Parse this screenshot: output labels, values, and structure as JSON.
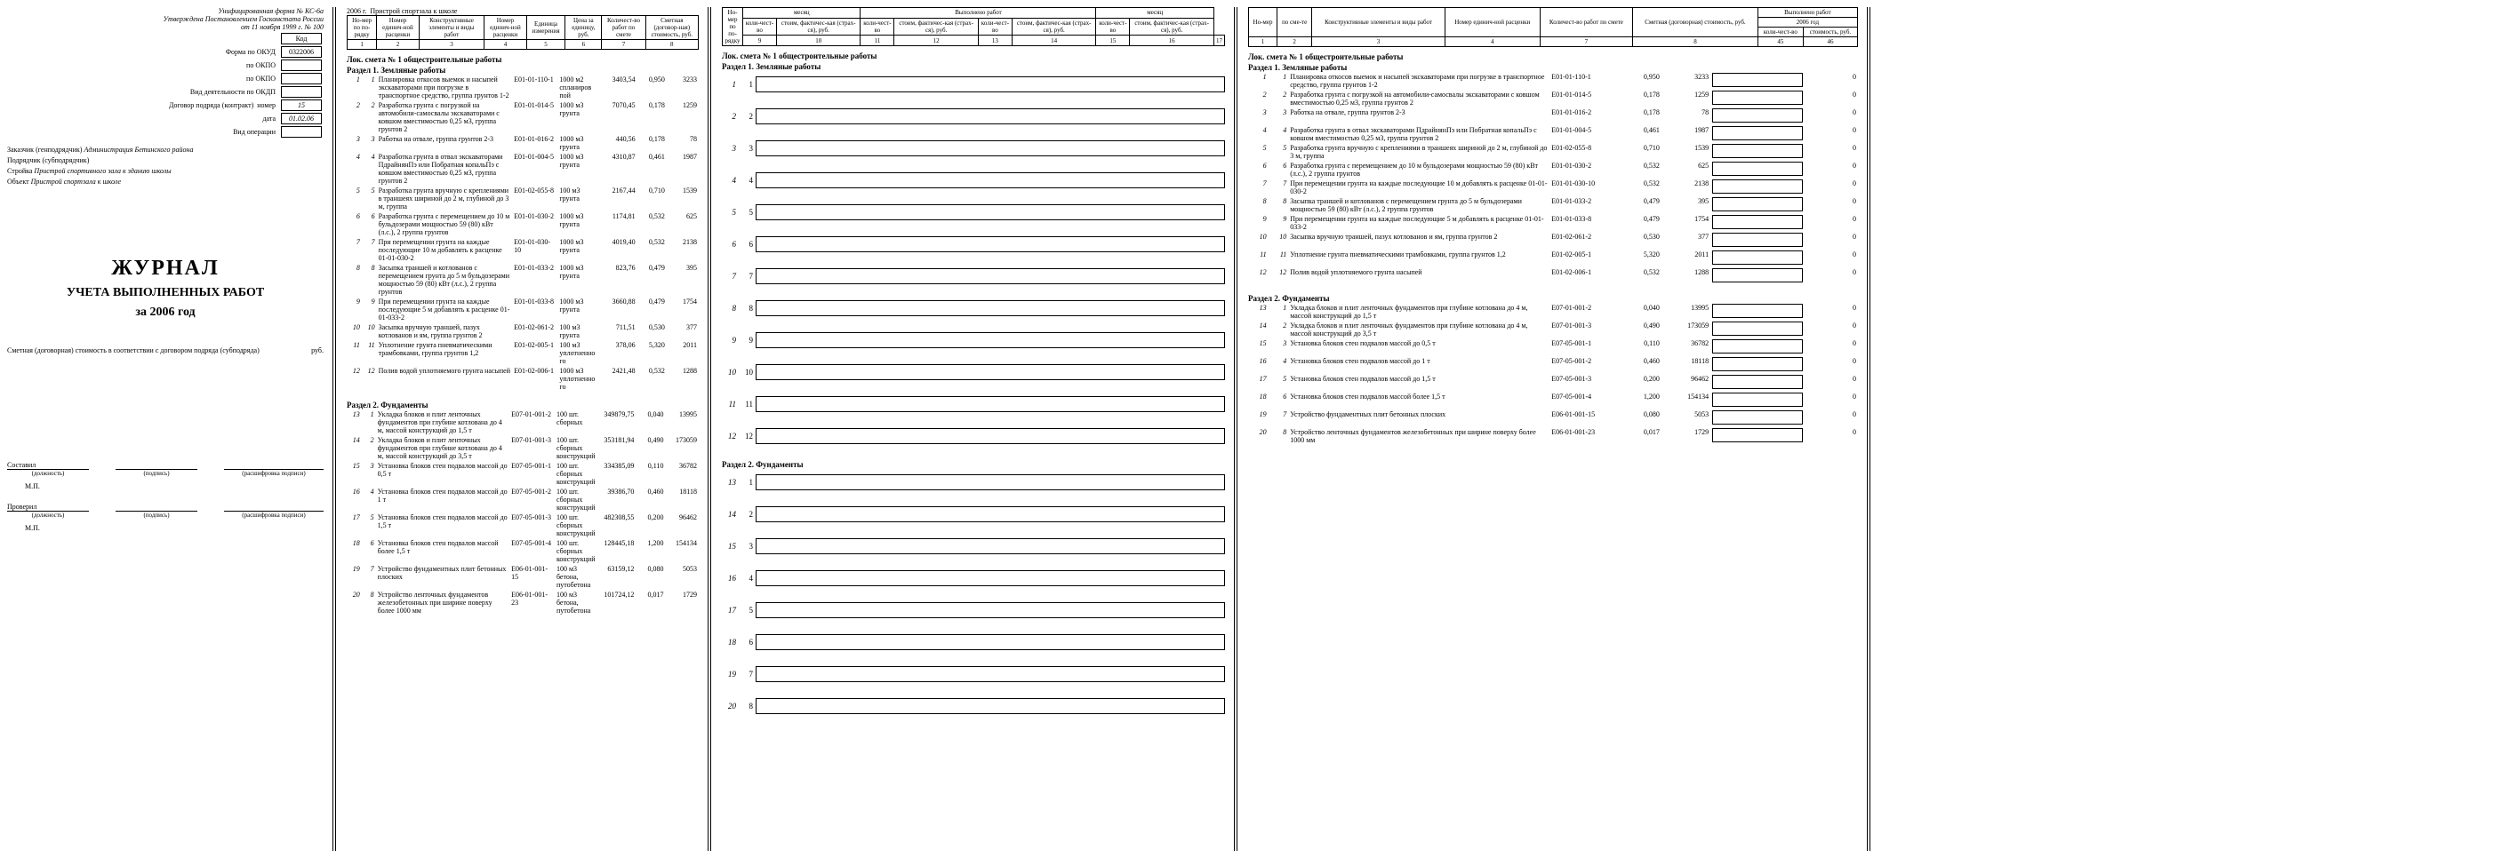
{
  "page1": {
    "form_note": "Унифицированная форма № КС-6а",
    "approved": "Утверждена Постановлением Госкомстата России",
    "approved2": "от 11 ноября 1999 г. № 100",
    "codes_header": "Код",
    "okud_label": "Форма по ОКУД",
    "okud": "0322006",
    "okpo_label": "по ОКПО",
    "okdp_label": "Вид деятельности по ОКДП",
    "contract_label": "Договор подряда (контракт)",
    "contract_num_label": "номер",
    "contract_num": "15",
    "contract_date_label": "дата",
    "contract_date": "01.02.06",
    "op_label": "Вид операции",
    "customer_label": "Заказчик (генподрядчик)",
    "customer": "Администрация Бетинского района",
    "contractor_label": "Подрядчик (субподрядчик)",
    "contractor": "",
    "project_label": "Стройка",
    "project": "Пристрой спортивного зала к зданию школы",
    "object_label": "Объект",
    "object": "Пристрой спортзала к школе",
    "journal": "ЖУРНАЛ",
    "journal_sub": "УЧЕТА ВЫПОЛНЕННЫХ РАБОТ",
    "journal_year": "за    2006   год",
    "estimate_line": "Сметная (договорная) стоимость в соответствии с договором подряда (субподряда)",
    "rub": "руб.",
    "compiled": "Составил",
    "checked": "Проверил",
    "sig_post": "(должность)",
    "sig_sign": "(подпись)",
    "sig_name": "(расшифровка подписи)",
    "mp": "М.П."
  },
  "page2": {
    "year_label": "2006 г.",
    "title1": "Пристрой спортзала к школе",
    "h": [
      "Но-мер по по-рядку",
      "Номер единич-ной расценки",
      "Конструктивные элементы и виды работ",
      "Номер единич-ной расценки",
      "Единица измерения",
      "Цена за единицу, руб.",
      "Количест-во работ по смете",
      "Сметная (договор-ная) стоимость, руб."
    ],
    "hnum": [
      "1",
      "2",
      "3",
      "4",
      "5",
      "6",
      "7",
      "8"
    ],
    "sect": "Лок. смета №  1   общестроительные работы",
    "sub1": "Раздел 1. Земляные работы",
    "rows1": [
      {
        "n": "1",
        "i": "1",
        "d": "Планировка откосов выемок и насыпей экскаваторами при погрузке в транспортное средство, группа грунтов 1-2",
        "code": "Е01-01-110-1",
        "u": "1000 м2 спланиров пой",
        "p": "3403,54",
        "q": "0,950",
        "c": "3233"
      },
      {
        "n": "2",
        "i": "2",
        "d": "Разработка грунта с погрузкой на автомобили-самосвалы экскаваторами с ковшом вместимостью 0,25 м3, группа грунтов 2",
        "code": "Е01-01-014-5",
        "u": "1000 м3 грунта",
        "p": "7070,45",
        "q": "0,178",
        "c": "1259"
      },
      {
        "n": "3",
        "i": "3",
        "d": "Работка на отвале, группа грунтов 2-3",
        "code": "Е01-01-016-2",
        "u": "1000 м3 грунта",
        "p": "440,56",
        "q": "0,178",
        "c": "78"
      },
      {
        "n": "4",
        "i": "4",
        "d": "Разработка грунта в отвал экскаваторами ПдрайнянПэ или Побратная копальПэ с ковшом вместимостью 0,25 м3, группа грунтов 2",
        "code": "Е01-01-004-5",
        "u": "1000 м3 грунта",
        "p": "4310,87",
        "q": "0,461",
        "c": "1987"
      },
      {
        "n": "5",
        "i": "5",
        "d": "Разработка грунта вручную с креплениями в траншеях шириной до 2 м, глубиной до 3 м, группа",
        "code": "Е01-02-055-8",
        "u": "100 м3 грунта",
        "p": "2167,44",
        "q": "0,710",
        "c": "1539"
      },
      {
        "n": "6",
        "i": "6",
        "d": "Разработка грунта с перемещением до 10 м бульдозерами мощностью 59 (80) кВт (л.с.), 2 группа грунтов",
        "code": "Е01-01-030-2",
        "u": "1000 м3 грунта",
        "p": "1174,81",
        "q": "0,532",
        "c": "625"
      },
      {
        "n": "7",
        "i": "7",
        "d": "При перемещении грунта на каждые последующие 10 м добавлять к расценке 01-01-030-2",
        "code": "Е01-01-030-10",
        "u": "1000 м3 грунта",
        "p": "4019,40",
        "q": "0,532",
        "c": "2138"
      },
      {
        "n": "8",
        "i": "8",
        "d": "Засыпка траншей и котлованов с перемещением грунта до 5 м бульдозерами мощностью 59 (80) кВт (л.с.), 2 группа грунтов",
        "code": "Е01-01-033-2",
        "u": "1000 м3 грунта",
        "p": "823,76",
        "q": "0,479",
        "c": "395"
      },
      {
        "n": "9",
        "i": "9",
        "d": "При перемещении грунта на каждые последующие 5 м добавлять к расценке 01-01-033-2",
        "code": "Е01-01-033-8",
        "u": "1000 м3 грунта",
        "p": "3660,88",
        "q": "0,479",
        "c": "1754"
      },
      {
        "n": "10",
        "i": "10",
        "d": "Засыпка вручную траншей, пазух котлованов и ям, группа грунтов 2",
        "code": "Е01-02-061-2",
        "u": "100 м3 грунта",
        "p": "711,51",
        "q": "0,530",
        "c": "377"
      },
      {
        "n": "11",
        "i": "11",
        "d": "Уплотнение грунта пневматическими трамбовками, группа грунтов 1,2",
        "code": "Е01-02-005-1",
        "u": "100 м3 уплотненно го",
        "p": "378,06",
        "q": "5,320",
        "c": "2011"
      },
      {
        "n": "12",
        "i": "12",
        "d": "Полив водой уплотняемого грунта насыпей",
        "code": "Е01-02-006-1",
        "u": "1000 м3 уплотненно го",
        "p": "2421,48",
        "q": "0,532",
        "c": "1288"
      }
    ],
    "sub2": "Раздел 2. Фундаменты",
    "rows2": [
      {
        "n": "13",
        "i": "1",
        "d": "Укладка блоков и плит ленточных фундаментов при глубине котлована до 4 м, массой конструкций до 1,5 т",
        "code": "Е07-01-001-2",
        "u": "100 шт. сборных",
        "p": "349879,75",
        "q": "0,040",
        "c": "13995"
      },
      {
        "n": "14",
        "i": "2",
        "d": "Укладка блоков и плит ленточных фундаментов при глубине котлована до 4 м, массой конструкций до 3,5 т",
        "code": "Е07-01-001-3",
        "u": "100 шт. сборных конструкций",
        "p": "353181,94",
        "q": "0,490",
        "c": "173059"
      },
      {
        "n": "15",
        "i": "3",
        "d": "Установка блоков стен подвалов массой до 0,5 т",
        "code": "Е07-05-001-1",
        "u": "100 шт. сборных конструкций",
        "p": "334385,09",
        "q": "0,110",
        "c": "36782"
      },
      {
        "n": "16",
        "i": "4",
        "d": "Установка блоков стен подвалов массой до 1 т",
        "code": "Е07-05-001-2",
        "u": "100 шт. сборных конструкций",
        "p": "39386,70",
        "q": "0,460",
        "c": "18118"
      },
      {
        "n": "17",
        "i": "5",
        "d": "Установка блоков стен подвалов массой до 1,5 т",
        "code": "Е07-05-001-3",
        "u": "100 шт. сборных конструкций",
        "p": "482308,55",
        "q": "0,200",
        "c": "96462"
      },
      {
        "n": "18",
        "i": "6",
        "d": "Установка блоков стен подвалов массой более 1,5 т",
        "code": "Е07-05-001-4",
        "u": "100 шт. сборных конструкций",
        "p": "128445,18",
        "q": "1,200",
        "c": "154134"
      },
      {
        "n": "19",
        "i": "7",
        "d": "Устройство фундаментных плит бетонных плоских",
        "code": "Е06-01-001-15",
        "u": "100 м3 бетона, путобетона",
        "p": "63159,12",
        "q": "0,080",
        "c": "5053"
      },
      {
        "n": "20",
        "i": "8",
        "d": "Устройство ленточных фундаментов железобетонных при ширине поверху более 1000 мм",
        "code": "Е06-01-001-23",
        "u": "100 м3 бетона, путобетона",
        "p": "101724,12",
        "q": "0,017",
        "c": "1729"
      }
    ]
  },
  "page3": {
    "h_top": [
      "месяц",
      "Выполнено работ",
      "месяц"
    ],
    "h_sub": [
      "коли-чест-во",
      "стоим, фактичес-кая (страх-ся), руб.",
      "коли-чест-во",
      "стоим, фактичес-кая (страх-ся), руб.",
      "коли-чест-во",
      "стоим, фактичес-кая (страх-ся), руб.",
      "коли-чест-во",
      "стоим, фактичес-кая (страх-ся), руб."
    ],
    "hnum": [
      "9",
      "10",
      "11",
      "12",
      "13",
      "14",
      "15",
      "16",
      "17",
      "18"
    ],
    "sect": "Лок. смета №  1   общестроительные работы",
    "sub1": "Раздел 1. Земляные работы",
    "sub2": "Раздел 2. Фундаменты",
    "nums1": [
      "1",
      "2",
      "3",
      "4",
      "5",
      "6",
      "7",
      "8",
      "9",
      "10",
      "11",
      "12"
    ],
    "nums2": [
      "1",
      "2",
      "3",
      "4",
      "5",
      "6",
      "7",
      "8"
    ]
  },
  "page4": {
    "h_top": "Выполнено работ",
    "h_year": "2006 год",
    "h_cols": [
      "Но-мер",
      "по сме-те",
      "Конструктивные элементы и виды работ",
      "Номер единич-ной расценки",
      "Количест-во работ по смете",
      "Сметная (договорная) стоимость, руб.",
      "коли-чест-во",
      "стоимость, руб."
    ],
    "hnum": [
      "1",
      "2",
      "3",
      "4",
      "7",
      "8",
      "45",
      "46"
    ],
    "sect": "Лок. смета №  1   общестроительные работы",
    "sub1": "Раздел 1. Земляные работы",
    "rows1": [
      {
        "n": "1",
        "i": "1",
        "d": "Планировка откосов выемок и насыпей экскаваторами при погрузке в транспортное средство, группа грунтов 1-2",
        "code": "Е01-01-110-1",
        "q": "0,950",
        "c": "3233"
      },
      {
        "n": "2",
        "i": "2",
        "d": "Разработка грунта с погрузкой на автомобили-самосвалы экскаваторами с ковшом вместимостью 0,25 м3, группа грунтов 2",
        "code": "Е01-01-014-5",
        "q": "0,178",
        "c": "1259"
      },
      {
        "n": "3",
        "i": "3",
        "d": "Работка на отвале, группа грунтов 2-3",
        "code": "Е01-01-016-2",
        "q": "0,178",
        "c": "78"
      },
      {
        "n": "4",
        "i": "4",
        "d": "Разработка грунта в отвал экскаваторами ПдрайнянПэ или Побратная копальПэ с ковшом вместимостью 0,25 м3, группа грунтов 2",
        "code": "Е01-01-004-5",
        "q": "0,461",
        "c": "1987"
      },
      {
        "n": "5",
        "i": "5",
        "d": "Разработка грунта вручную с креплениями в траншеях шириной до 2 м, глубиной до 3 м, группа",
        "code": "Е01-02-055-8",
        "q": "0,710",
        "c": "1539"
      },
      {
        "n": "6",
        "i": "6",
        "d": "Разработка грунта с перемещением до 10 м бульдозерами мощностью 59 (80) кВт (л.с.), 2 группа грунтов",
        "code": "Е01-01-030-2",
        "q": "0,532",
        "c": "625"
      },
      {
        "n": "7",
        "i": "7",
        "d": "При перемещении грунта на каждые последующие 10 м добавлять к расценке 01-01-030-2",
        "code": "Е01-01-030-10",
        "q": "0,532",
        "c": "2138"
      },
      {
        "n": "8",
        "i": "8",
        "d": "Засыпка траншей и котлованов с перемещением грунта до 5 м бульдозерами мощностью 59 (80) кВт (л.с.), 2 группа грунтов",
        "code": "Е01-01-033-2",
        "q": "0,479",
        "c": "395"
      },
      {
        "n": "9",
        "i": "9",
        "d": "При перемещении грунта на каждые последующие 5 м добавлять к расценке 01-01-033-2",
        "code": "Е01-01-033-8",
        "q": "0,479",
        "c": "1754"
      },
      {
        "n": "10",
        "i": "10",
        "d": "Засыпка вручную траншей, пазух котлованов и ям, группа грунтов 2",
        "code": "Е01-02-061-2",
        "q": "0,530",
        "c": "377"
      },
      {
        "n": "11",
        "i": "11",
        "d": "Уплотнение грунта пневматическими трамбовками, группа грунтов 1,2",
        "code": "Е01-02-005-1",
        "q": "5,320",
        "c": "2011"
      },
      {
        "n": "12",
        "i": "12",
        "d": "Полив водой уплотняемого грунта насыпей",
        "code": "Е01-02-006-1",
        "q": "0,532",
        "c": "1288"
      }
    ],
    "sub2": "Раздел 2. Фундаменты",
    "rows2": [
      {
        "n": "13",
        "i": "1",
        "d": "Укладка блоков и плит ленточных фундаментов при глубине котлована до 4 м, массой конструкций до 1,5 т",
        "code": "Е07-01-001-2",
        "q": "0,040",
        "c": "13995"
      },
      {
        "n": "14",
        "i": "2",
        "d": "Укладка блоков и плит ленточных фундаментов при глубине котлована до 4 м, массой конструкций до 3,5 т",
        "code": "Е07-01-001-3",
        "q": "0,490",
        "c": "173059"
      },
      {
        "n": "15",
        "i": "3",
        "d": "Установка блоков стен подвалов массой до 0,5 т",
        "code": "Е07-05-001-1",
        "q": "0,110",
        "c": "36782"
      },
      {
        "n": "16",
        "i": "4",
        "d": "Установка блоков стен подвалов массой до 1 т",
        "code": "Е07-05-001-2",
        "q": "0,460",
        "c": "18118"
      },
      {
        "n": "17",
        "i": "5",
        "d": "Установка блоков стен подвалов массой до 1,5 т",
        "code": "Е07-05-001-3",
        "q": "0,200",
        "c": "96462"
      },
      {
        "n": "18",
        "i": "6",
        "d": "Установка блоков стен подвалов массой более 1,5 т",
        "code": "Е07-05-001-4",
        "q": "1,200",
        "c": "154134"
      },
      {
        "n": "19",
        "i": "7",
        "d": "Устройство фундаментных плит бетонных плоских",
        "code": "Е06-01-001-15",
        "q": "0,080",
        "c": "5053"
      },
      {
        "n": "20",
        "i": "8",
        "d": "Устройство ленточных фундаментов железобетонных при ширине поверху более 1000 мм",
        "code": "Е06-01-001-23",
        "q": "0,017",
        "c": "1729"
      }
    ],
    "zero": "0"
  }
}
